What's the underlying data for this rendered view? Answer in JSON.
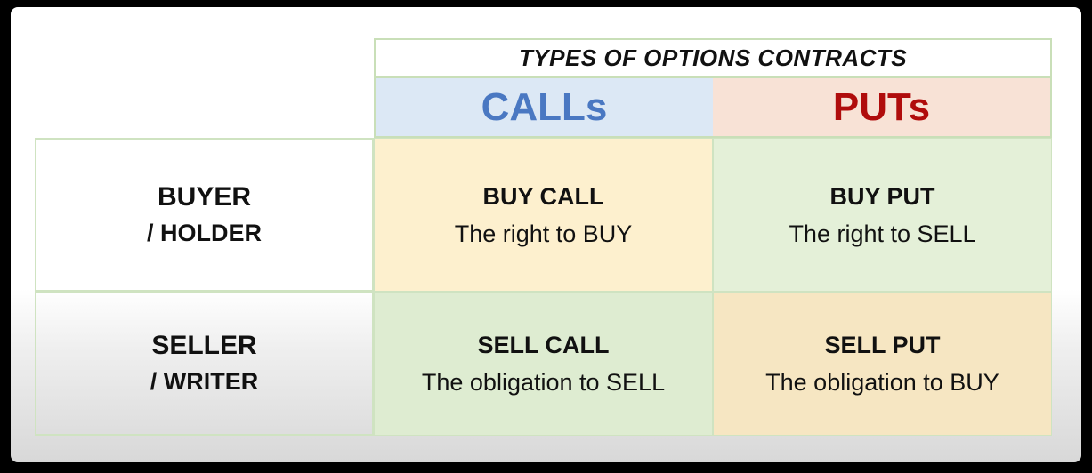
{
  "table": {
    "title": "TYPES OF OPTIONS CONTRACTS",
    "columns": [
      {
        "label": "CALLs",
        "color": "#4a78c2",
        "bg": "#dce8f5"
      },
      {
        "label": "PUTs",
        "color": "#b00c0c",
        "bg": "#f8e2d6"
      }
    ],
    "rows": [
      {
        "label_line1": "BUYER",
        "label_line2": "/ HOLDER"
      },
      {
        "label_line1": "SELLER",
        "label_line2": "/ WRITER"
      }
    ],
    "cells": {
      "buy_call": {
        "title": "BUY CALL",
        "desc": "The right to BUY",
        "bg": "#fdf0ce"
      },
      "buy_put": {
        "title": "BUY PUT",
        "desc": "The right to SELL",
        "bg": "#e4f0d8"
      },
      "sell_call": {
        "title": "SELL CALL",
        "desc": "The obligation to SELL",
        "bg": "#deecd1"
      },
      "sell_put": {
        "title": "SELL PUT",
        "desc": "The obligation to BUY",
        "bg": "#f6e6c2"
      }
    }
  }
}
